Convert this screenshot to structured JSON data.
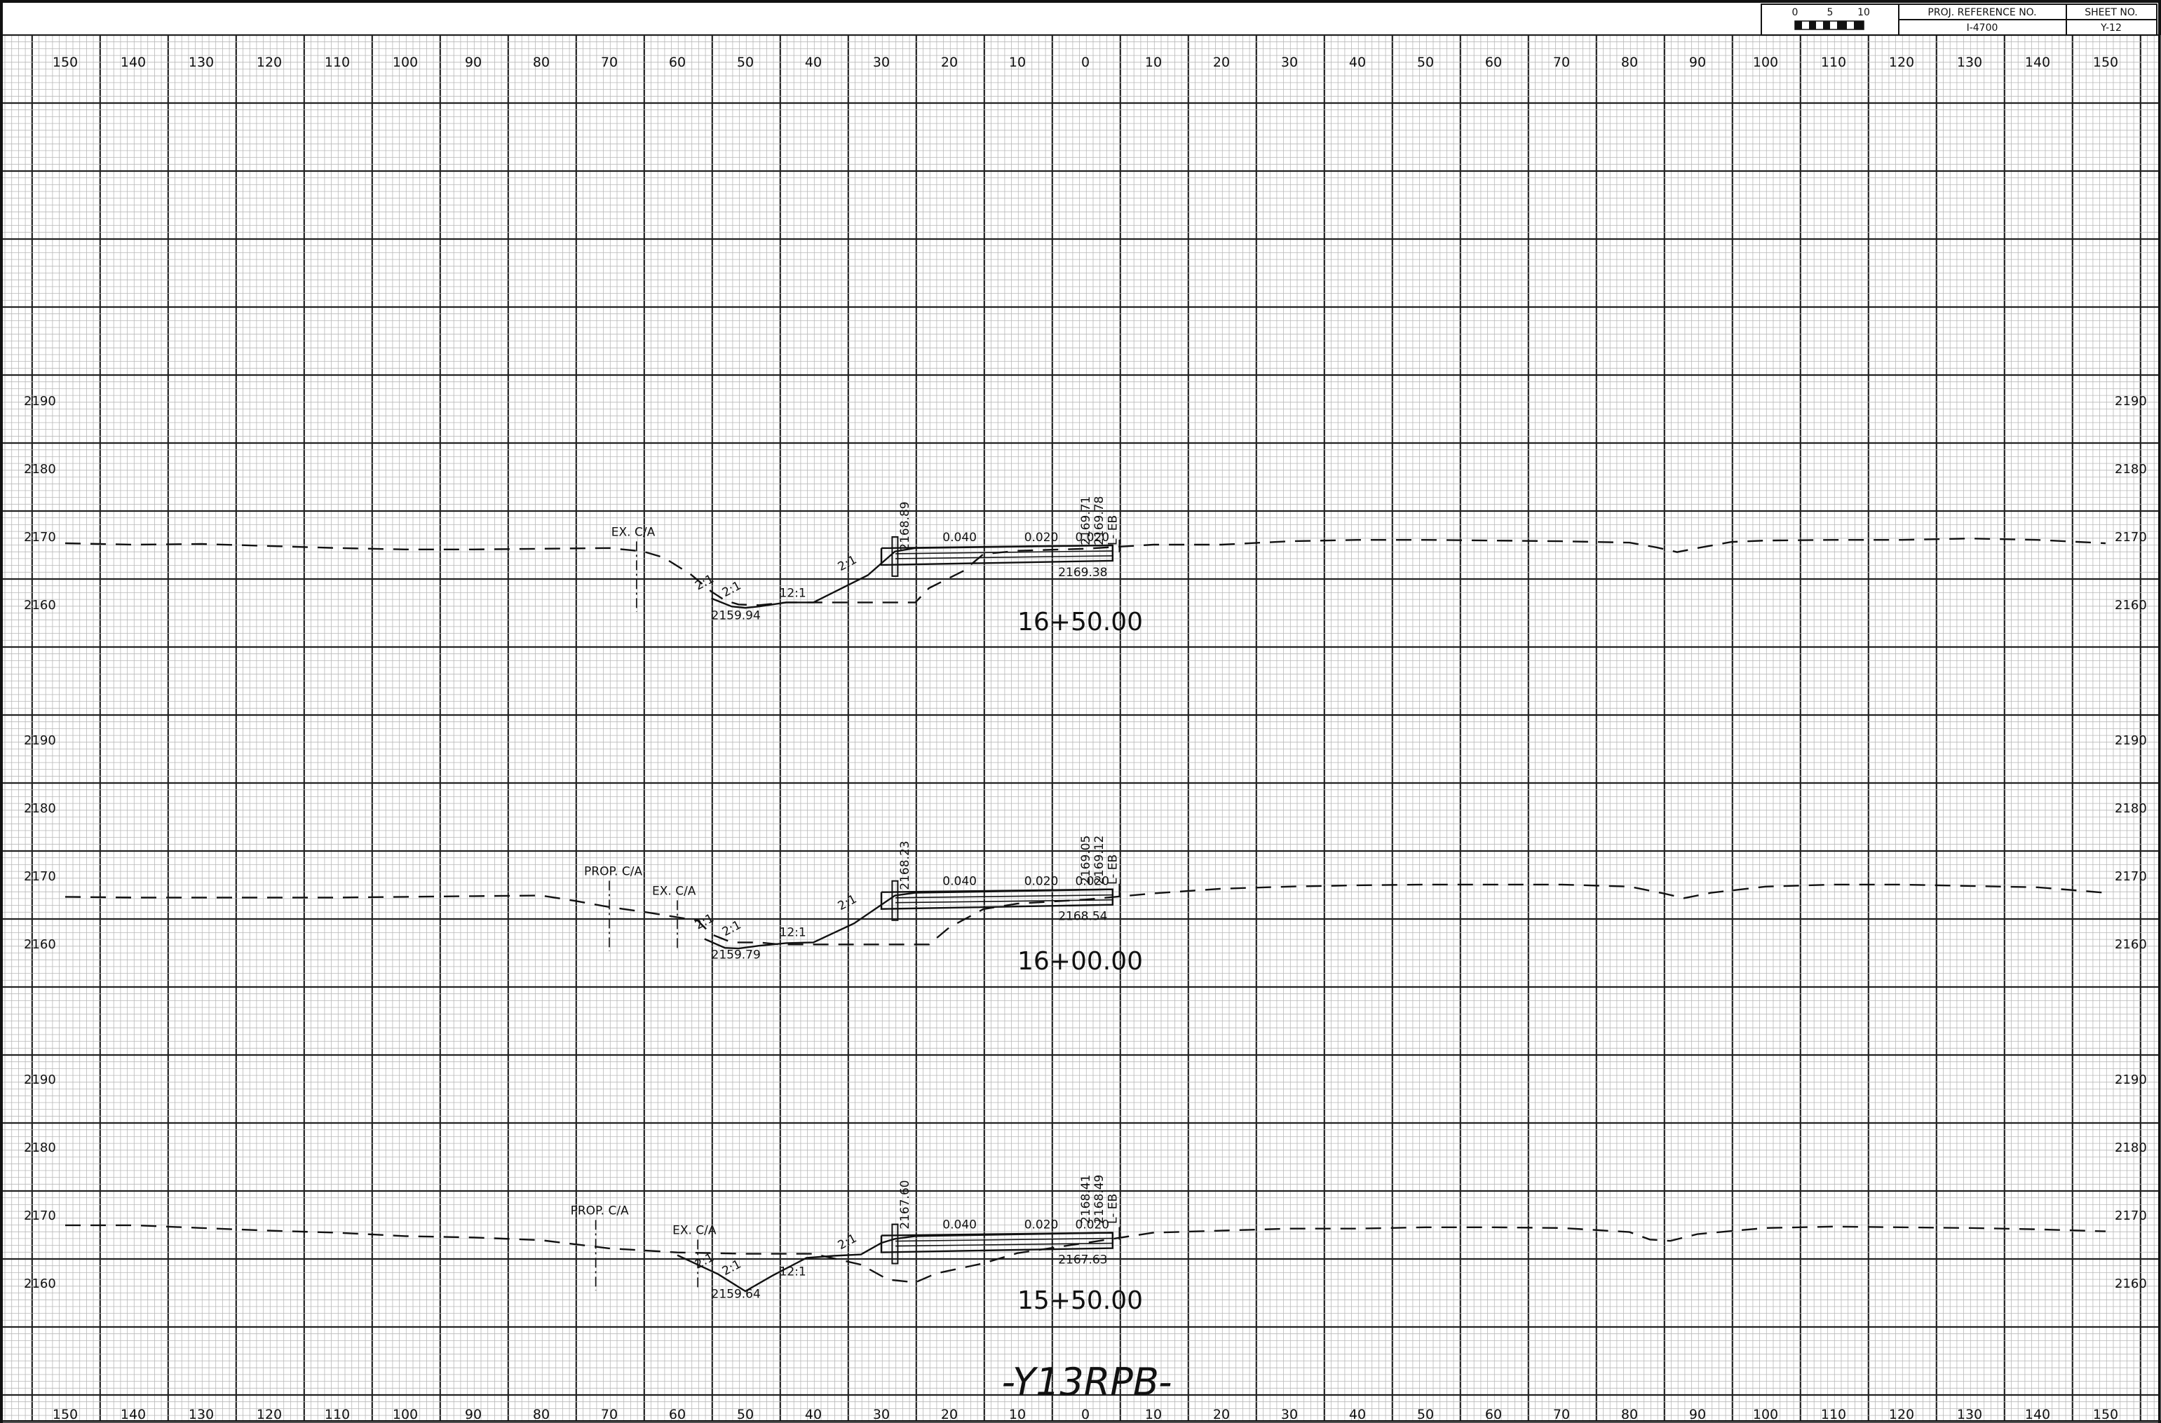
{
  "title_block": {
    "scale_labels": [
      "0",
      "5",
      "10"
    ],
    "proj_ref_label": "PROJ. REFERENCE NO.",
    "proj_ref_value": "I-4700",
    "sheet_label": "SHEET NO.",
    "sheet_value": "Y-12"
  },
  "offset_labels": [
    "150",
    "140",
    "130",
    "120",
    "110",
    "100",
    "90",
    "80",
    "70",
    "60",
    "50",
    "40",
    "30",
    "20",
    "10",
    "0",
    "10",
    "20",
    "30",
    "40",
    "50",
    "60",
    "70",
    "80",
    "90",
    "100",
    "110",
    "120",
    "130",
    "140",
    "150"
  ],
  "alignment_label": "-Y13RPB-",
  "sections": [
    {
      "station": "16+50.00",
      "elevations": [
        "2190",
        "2180",
        "2170",
        "2160"
      ],
      "ground": [
        [
          -150,
          2170.1
        ],
        [
          -145,
          2170.0
        ],
        [
          -140,
          2169.9
        ],
        [
          -130,
          2170.0
        ],
        [
          -120,
          2169.7
        ],
        [
          -110,
          2169.4
        ],
        [
          -100,
          2169.2
        ],
        [
          -90,
          2169.2
        ],
        [
          -80,
          2169.3
        ],
        [
          -70,
          2169.4
        ],
        [
          -65,
          2168.9
        ],
        [
          -62,
          2168.0
        ],
        [
          -58,
          2165.5
        ],
        [
          -55,
          2163.0
        ],
        [
          -53,
          2161.7
        ],
        [
          -51,
          2161.1
        ],
        [
          -48,
          2161.0
        ],
        [
          -44,
          2161.4
        ],
        [
          -40,
          2161.4
        ],
        [
          -30,
          2161.4
        ],
        [
          -25,
          2161.4
        ],
        [
          -23,
          2163.5
        ],
        [
          -18,
          2166.0
        ],
        [
          -15,
          2168.5
        ],
        [
          -10,
          2169.0
        ],
        [
          0,
          2169.3
        ],
        [
          10,
          2169.9
        ],
        [
          20,
          2169.9
        ],
        [
          30,
          2170.4
        ],
        [
          40,
          2170.6
        ],
        [
          50,
          2170.6
        ],
        [
          60,
          2170.5
        ],
        [
          70,
          2170.4
        ],
        [
          80,
          2170.2
        ],
        [
          84,
          2169.5
        ],
        [
          87,
          2168.8
        ],
        [
          90,
          2169.4
        ],
        [
          95,
          2170.3
        ],
        [
          100,
          2170.5
        ],
        [
          110,
          2170.6
        ],
        [
          120,
          2170.6
        ],
        [
          130,
          2170.8
        ],
        [
          140,
          2170.6
        ],
        [
          150,
          2170.1
        ]
      ],
      "design": [
        [
          -55,
          2162.0
        ],
        [
          -52,
          2160.8
        ],
        [
          -50,
          2160.6
        ],
        [
          -48,
          2160.8
        ],
        [
          -44,
          2161.4
        ],
        [
          -40,
          2161.4
        ],
        [
          -32,
          2165.4
        ],
        [
          -28,
          2168.9
        ],
        [
          -25,
          2169.4
        ],
        [
          4,
          2169.8
        ]
      ],
      "slope_notes": [
        "2:1",
        "2:1",
        "12:1",
        "2:1"
      ],
      "low_point": "2159.94",
      "top_of_slope": "2168.89",
      "cross_slopes": [
        "0.040",
        "0.020",
        "0.020"
      ],
      "grade_values": [
        "2169.71",
        "2169.78"
      ],
      "subgrade_value": "2169.38",
      "baseline_tag": "L- EB",
      "ca_labels": [
        {
          "text": "EX. C/A",
          "offset": -66
        }
      ]
    },
    {
      "station": "16+00.00",
      "elevations": [
        "2190",
        "2180",
        "2170",
        "2160"
      ],
      "ground": [
        [
          -150,
          2168.0
        ],
        [
          -140,
          2167.9
        ],
        [
          -130,
          2167.9
        ],
        [
          -120,
          2167.9
        ],
        [
          -110,
          2167.9
        ],
        [
          -100,
          2168.0
        ],
        [
          -90,
          2168.1
        ],
        [
          -80,
          2168.2
        ],
        [
          -75,
          2167.4
        ],
        [
          -70,
          2166.5
        ],
        [
          -65,
          2165.8
        ],
        [
          -60,
          2165.0
        ],
        [
          -57,
          2164.5
        ],
        [
          -55,
          2162.5
        ],
        [
          -52,
          2161.3
        ],
        [
          -48,
          2161.3
        ],
        [
          -45,
          2161.0
        ],
        [
          -40,
          2161.0
        ],
        [
          -30,
          2161.0
        ],
        [
          -23,
          2161.0
        ],
        [
          -20,
          2163.5
        ],
        [
          -15,
          2166.2
        ],
        [
          -10,
          2167.0
        ],
        [
          0,
          2167.6
        ],
        [
          10,
          2168.5
        ],
        [
          20,
          2169.2
        ],
        [
          30,
          2169.5
        ],
        [
          40,
          2169.7
        ],
        [
          50,
          2169.8
        ],
        [
          60,
          2169.8
        ],
        [
          70,
          2169.8
        ],
        [
          80,
          2169.5
        ],
        [
          85,
          2168.5
        ],
        [
          88,
          2167.8
        ],
        [
          92,
          2168.6
        ],
        [
          100,
          2169.5
        ],
        [
          110,
          2169.8
        ],
        [
          120,
          2169.8
        ],
        [
          130,
          2169.6
        ],
        [
          140,
          2169.4
        ],
        [
          150,
          2168.6
        ]
      ],
      "design": [
        [
          -56,
          2161.8
        ],
        [
          -53,
          2160.5
        ],
        [
          -51,
          2160.4
        ],
        [
          -48,
          2160.8
        ],
        [
          -44,
          2161.2
        ],
        [
          -40,
          2161.3
        ],
        [
          -34,
          2164.1
        ],
        [
          -28,
          2168.2
        ],
        [
          -25,
          2168.6
        ],
        [
          4,
          2169.1
        ]
      ],
      "slope_notes": [
        "2:1",
        "2:1",
        "12:1",
        "2:1"
      ],
      "low_point": "2159.79",
      "top_of_slope": "2168.23",
      "cross_slopes": [
        "0.040",
        "0.020",
        "0.020"
      ],
      "grade_values": [
        "2169.05",
        "2169.12"
      ],
      "subgrade_value": "2168.54",
      "baseline_tag": "L- EB",
      "ca_labels": [
        {
          "text": "PROP. C/A",
          "offset": -70
        },
        {
          "text": "EX. C/A",
          "offset": -60
        }
      ]
    },
    {
      "station": "15+50.00",
      "elevations": [
        "2190",
        "2180",
        "2170",
        "2160"
      ],
      "ground": [
        [
          -150,
          2169.6
        ],
        [
          -140,
          2169.6
        ],
        [
          -130,
          2169.2
        ],
        [
          -120,
          2168.8
        ],
        [
          -110,
          2168.5
        ],
        [
          -100,
          2168.0
        ],
        [
          -90,
          2167.8
        ],
        [
          -80,
          2167.4
        ],
        [
          -70,
          2166.2
        ],
        [
          -60,
          2165.6
        ],
        [
          -50,
          2165.4
        ],
        [
          -40,
          2165.4
        ],
        [
          -33,
          2163.8
        ],
        [
          -29,
          2161.6
        ],
        [
          -25,
          2161.2
        ],
        [
          -22,
          2162.5
        ],
        [
          -15,
          2164.0
        ],
        [
          -10,
          2165.5
        ],
        [
          0,
          2167.0
        ],
        [
          10,
          2168.5
        ],
        [
          20,
          2168.8
        ],
        [
          30,
          2169.1
        ],
        [
          40,
          2169.1
        ],
        [
          50,
          2169.3
        ],
        [
          60,
          2169.3
        ],
        [
          70,
          2169.2
        ],
        [
          80,
          2168.6
        ],
        [
          83,
          2167.5
        ],
        [
          86,
          2167.3
        ],
        [
          90,
          2168.3
        ],
        [
          100,
          2169.2
        ],
        [
          110,
          2169.4
        ],
        [
          120,
          2169.3
        ],
        [
          130,
          2169.2
        ],
        [
          140,
          2169.0
        ],
        [
          150,
          2168.7
        ]
      ],
      "design": [
        [
          -60,
          2165.2
        ],
        [
          -54,
          2162.4
        ],
        [
          -50,
          2159.9
        ],
        [
          -46,
          2162.2
        ],
        [
          -41,
          2164.8
        ],
        [
          -37,
          2165.1
        ],
        [
          -33,
          2165.3
        ],
        [
          -30,
          2167.0
        ],
        [
          -28,
          2167.6
        ],
        [
          -25,
          2168.0
        ],
        [
          4,
          2168.5
        ]
      ],
      "slope_notes": [
        "2:1",
        "2:1",
        "12:1",
        "2:1"
      ],
      "low_point": "2159.64",
      "top_of_slope": "2167.60",
      "cross_slopes": [
        "0.040",
        "0.020",
        "0.020"
      ],
      "grade_values": [
        "2168.41",
        "2168.49"
      ],
      "subgrade_value": "2167.63",
      "baseline_tag": "L- EB",
      "ca_labels": [
        {
          "text": "PROP. C/A",
          "offset": -72
        },
        {
          "text": "EX. C/A",
          "offset": -57
        }
      ]
    }
  ]
}
